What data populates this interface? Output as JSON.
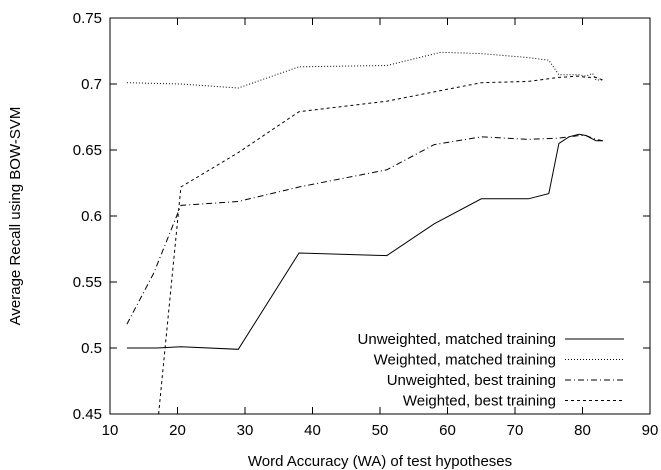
{
  "chart_data": {
    "type": "line",
    "title": "",
    "xlabel": "Word Accuracy (WA) of test hypotheses",
    "ylabel": "Average Recall using BOW-SVM",
    "xlim": [
      10,
      90
    ],
    "ylim": [
      0.45,
      0.75
    ],
    "xticks": [
      10,
      20,
      30,
      40,
      50,
      60,
      70,
      80,
      90
    ],
    "yticks": [
      0.45,
      0.5,
      0.55,
      0.6,
      0.65,
      0.7,
      0.75
    ],
    "xtick_labels": [
      "10",
      "20",
      "30",
      "40",
      "50",
      "60",
      "70",
      "80",
      "90"
    ],
    "ytick_labels": [
      "0.45",
      "0.5",
      "0.55",
      "0.6",
      "0.65",
      "0.7",
      "0.75"
    ],
    "grid": false,
    "legend_position": "bottom-right",
    "series": [
      {
        "name": "Unweighted, matched training",
        "style": "solid",
        "x": [
          12.5,
          17,
          20.5,
          29,
          38,
          51,
          58,
          65,
          72,
          75,
          76.5,
          78,
          79.5,
          80.5,
          82,
          83
        ],
        "y": [
          0.5,
          0.5,
          0.501,
          0.499,
          0.572,
          0.57,
          0.594,
          0.613,
          0.613,
          0.617,
          0.655,
          0.66,
          0.662,
          0.661,
          0.657,
          0.657
        ]
      },
      {
        "name": "Weighted, matched training",
        "style": "dotted",
        "x": [
          12.5,
          20.5,
          29,
          38,
          51,
          59,
          65,
          72,
          75,
          76.5,
          78,
          79.5,
          80.5,
          81.5,
          82,
          83
        ],
        "y": [
          0.701,
          0.7,
          0.697,
          0.713,
          0.714,
          0.724,
          0.723,
          0.72,
          0.718,
          0.707,
          0.707,
          0.707,
          0.706,
          0.708,
          0.703,
          0.703
        ]
      },
      {
        "name": "Unweighted, best training",
        "style": "dash-dot",
        "x": [
          12.5,
          16.5,
          20.5,
          29,
          38,
          51,
          58,
          65,
          72,
          76.5,
          79.5,
          80.5,
          82,
          83
        ],
        "y": [
          0.518,
          0.557,
          0.608,
          0.611,
          0.622,
          0.635,
          0.654,
          0.66,
          0.658,
          0.659,
          0.661,
          0.661,
          0.658,
          0.657
        ]
      },
      {
        "name": "Weighted, best training",
        "style": "dashed",
        "x": [
          17.2,
          20.5,
          29,
          38,
          51,
          58,
          65,
          72,
          76.5,
          79.5,
          80.5,
          82,
          83
        ],
        "y": [
          0.45,
          0.622,
          0.648,
          0.679,
          0.687,
          0.694,
          0.701,
          0.702,
          0.705,
          0.706,
          0.705,
          0.705,
          0.703
        ]
      }
    ]
  }
}
